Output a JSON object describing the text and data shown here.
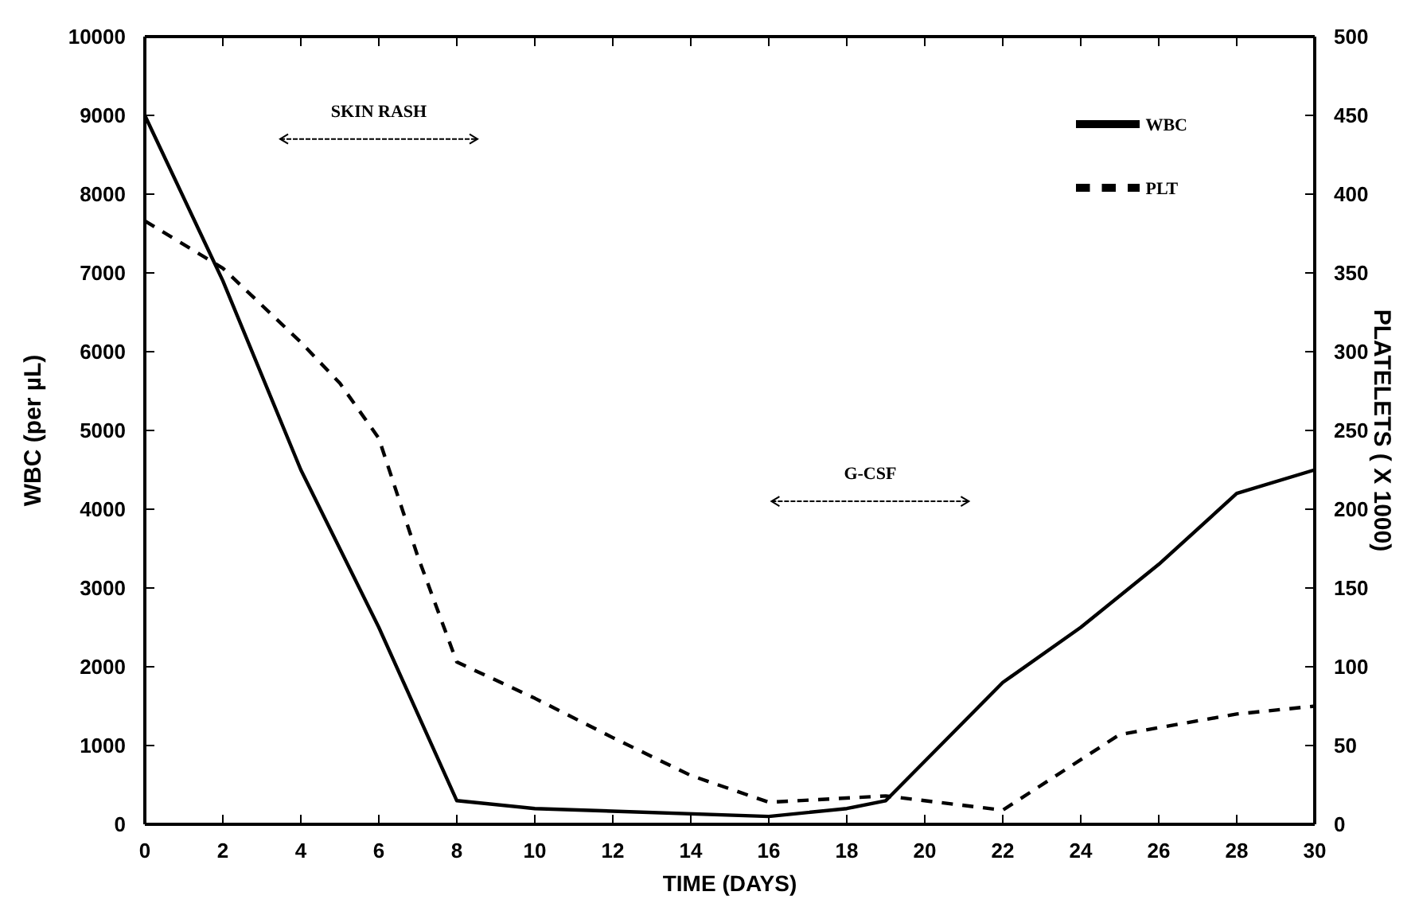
{
  "chart_data": {
    "type": "line",
    "xlabel": "TIME (DAYS)",
    "ylabel": "WBC (per µL)",
    "y2label": "PLATELETS ( X 1000)",
    "xlim": [
      0,
      30
    ],
    "xticks": [
      0,
      2,
      4,
      6,
      8,
      10,
      12,
      14,
      16,
      18,
      20,
      22,
      24,
      26,
      28,
      30
    ],
    "ylim": [
      0,
      10000
    ],
    "yticks": [
      0,
      1000,
      2000,
      3000,
      4000,
      5000,
      6000,
      7000,
      8000,
      9000,
      10000
    ],
    "y2lim": [
      0,
      500
    ],
    "y2ticks": [
      0,
      50,
      100,
      150,
      200,
      250,
      300,
      350,
      400,
      450,
      500
    ],
    "series": [
      {
        "name": "WBC",
        "color": "#000000",
        "line_style": "solid",
        "x": [
          0,
          2,
          4,
          6,
          8,
          10,
          16,
          18,
          19,
          22,
          24,
          26,
          28,
          30
        ],
        "values": [
          9000,
          6900,
          4500,
          2500,
          300,
          200,
          100,
          200,
          300,
          1800,
          2500,
          3300,
          4200,
          4500
        ]
      },
      {
        "name": "PLT",
        "color": "#000000",
        "line_style": "dashed",
        "axis": "y2",
        "x": [
          0,
          2,
          4,
          5,
          6,
          7,
          8,
          10,
          12,
          14,
          16,
          19,
          22,
          25,
          28,
          30
        ],
        "values": [
          383,
          353,
          306,
          280,
          245,
          170,
          103,
          80,
          55,
          31,
          14,
          18,
          9,
          57,
          70,
          75
        ]
      }
    ],
    "annotations": [
      "SKIN RASH",
      "G-CSF"
    ],
    "legend": "top right",
    "grid": false,
    "marker": "none"
  }
}
